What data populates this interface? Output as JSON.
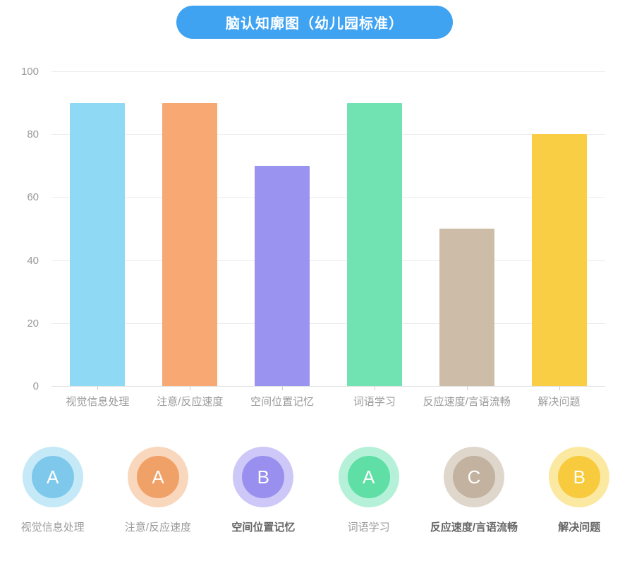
{
  "title": "脑认知廓图（幼儿园标准）",
  "chart_data": {
    "type": "bar",
    "title": "脑认知廓图（幼儿园标准）",
    "categories": [
      "视觉信息处理",
      "注意/反应速度",
      "空间位置记忆",
      "词语学习",
      "反应速度/言语流畅",
      "解决问题"
    ],
    "values": [
      90,
      90,
      70,
      90,
      50,
      80
    ],
    "bar_colors": [
      "#90D9F4",
      "#F7A873",
      "#9A93F0",
      "#71E3B2",
      "#CDBCA8",
      "#F9CD44"
    ],
    "xlabel": "",
    "ylabel": "",
    "ylim": [
      0,
      100
    ],
    "yticks": [
      0,
      20,
      40,
      60,
      80,
      100
    ],
    "grid": true,
    "legend_position": "none"
  },
  "grades": [
    {
      "label": "视觉信息处理",
      "grade": "A",
      "inner_color": "#7EC9EB",
      "halo_color": "#C5E9F7",
      "emphasis": false
    },
    {
      "label": "注意/反应速度",
      "grade": "A",
      "inner_color": "#F0A167",
      "halo_color": "#F8D7BD",
      "emphasis": false
    },
    {
      "label": "空间位置记忆",
      "grade": "B",
      "inner_color": "#998FEE",
      "halo_color": "#CDC8F7",
      "emphasis": true
    },
    {
      "label": "词语学习",
      "grade": "A",
      "inner_color": "#5FDEA5",
      "halo_color": "#B5F1D8",
      "emphasis": false
    },
    {
      "label": "反应速度/言语流畅",
      "grade": "C",
      "inner_color": "#C2B29F",
      "halo_color": "#DFD7CC",
      "emphasis": true
    },
    {
      "label": "解决问题",
      "grade": "B",
      "inner_color": "#F7CB3D",
      "halo_color": "#FBE9A2",
      "emphasis": true
    }
  ],
  "style_colors": {
    "title_bg": "#3FA3F2",
    "title_text": "#FFFFFF",
    "grid_line": "#EDEDED",
    "axis_line": "#E0E0E0",
    "axis_tick": "#CCCCCC",
    "tick_label": "#999999",
    "label_regular": "#9B9B9B",
    "label_emphasis": "#666666"
  }
}
